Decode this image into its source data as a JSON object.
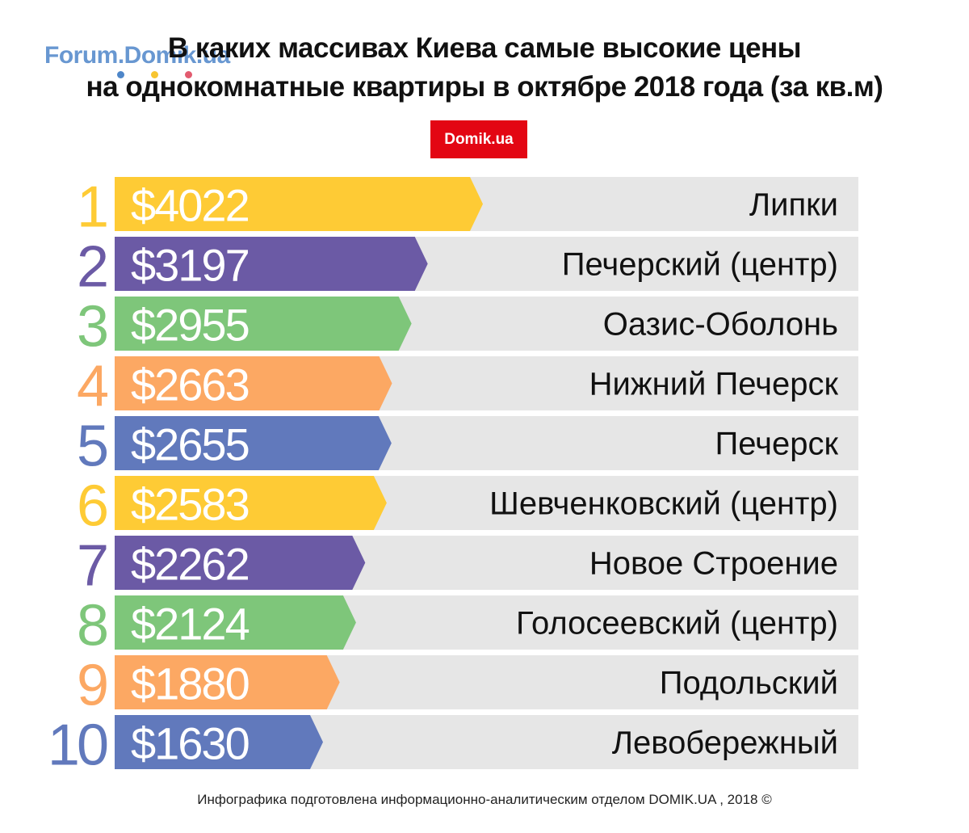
{
  "watermark": {
    "text": "Forum.Domik.ua",
    "dot_colors": [
      "#4e86c9",
      "#f7c531",
      "#e25b6f"
    ]
  },
  "title": {
    "line1": "В каких массивах Киева самые высокие цены",
    "line2": "на однокомнатные квартиры в октябре 2018 года (за кв.м)"
  },
  "badge": "Domik.ua",
  "footer": "Инфографика подготовлена информационно-аналитическим отделом DOMIK.UA , 2018 ©",
  "chart_data": {
    "type": "bar",
    "orientation": "horizontal",
    "unit": "$",
    "categories": [
      "Липки",
      "Печерский (центр)",
      "Оазис-Оболонь",
      "Нижний Печерск",
      "Печерск",
      "Шевченковский (центр)",
      "Новое Строение",
      "Голосеевский (центр)",
      "Подольский",
      "Левобережный"
    ],
    "ranks": [
      "1",
      "2",
      "3",
      "4",
      "5",
      "6",
      "7",
      "8",
      "9",
      "10"
    ],
    "values": [
      4022,
      3197,
      2955,
      2663,
      2655,
      2583,
      2262,
      2124,
      1880,
      1630
    ],
    "value_labels": [
      "$4022",
      "$3197",
      "$2955",
      "$2663",
      "$2655",
      "$2583",
      "$2262",
      "$2124",
      "$1880",
      "$1630"
    ],
    "colors": [
      "#fecb35",
      "#6b5aa5",
      "#7ec67a",
      "#fca863",
      "#6179bc",
      "#fecb35",
      "#6b5aa5",
      "#7ec67a",
      "#fca863",
      "#6179bc"
    ],
    "track_color": "#e6e6e6",
    "grid": false,
    "legend": "none"
  }
}
